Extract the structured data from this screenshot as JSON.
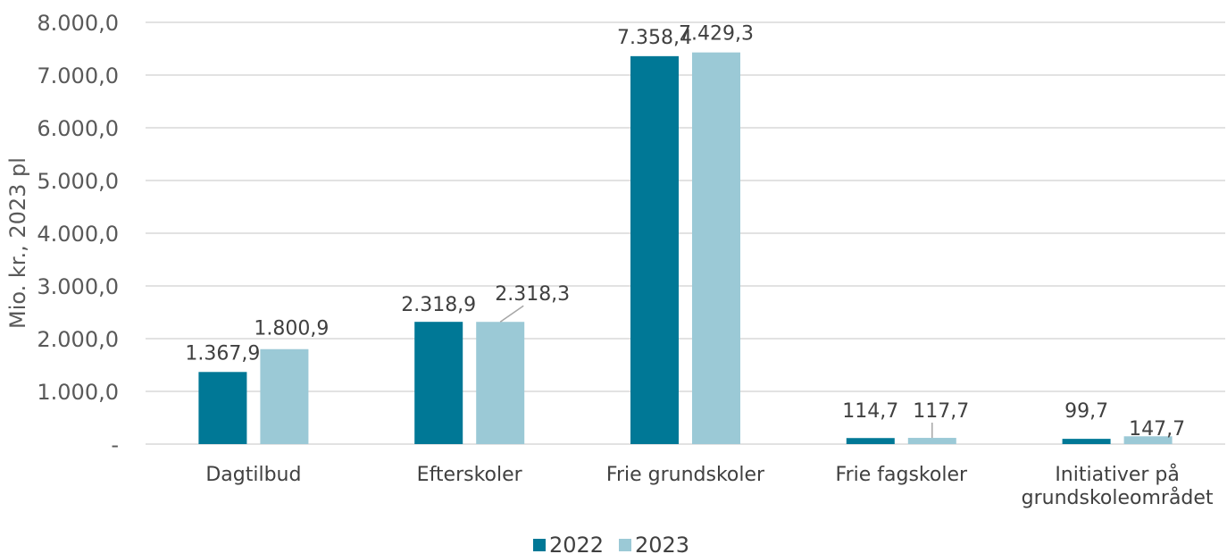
{
  "chart_data": {
    "type": "bar",
    "title": "",
    "ylabel": "Mio. kr., 2023 pl",
    "xlabel": "",
    "categories": [
      [
        "Dagtilbud"
      ],
      [
        "Efterskoler"
      ],
      [
        "Frie grundskoler"
      ],
      [
        "Frie fagskoler"
      ],
      [
        "Initiativer på",
        "grundskoleområdet"
      ]
    ],
    "series": [
      {
        "name": "2022",
        "color": "#007896",
        "values": [
          1367.9,
          2318.9,
          7358.4,
          114.7,
          99.7
        ],
        "labels": [
          "1.367,9",
          "2.318,9",
          "7.358,4",
          "114,7",
          "99,7"
        ]
      },
      {
        "name": "2023",
        "color": "#9BC9D6",
        "values": [
          1800.9,
          2318.3,
          7429.3,
          117.7,
          147.7
        ],
        "labels": [
          "1.800,9",
          "2.318,3",
          "7.429,3",
          "117,7",
          "147,7"
        ]
      }
    ],
    "ylim": [
      0,
      8000
    ],
    "yticks": [
      0,
      1000,
      2000,
      3000,
      4000,
      5000,
      6000,
      7000,
      8000
    ],
    "ytick_labels": [
      "-",
      "1.000,0",
      "2.000,0",
      "3.000,0",
      "4.000,0",
      "5.000,0",
      "6.000,0",
      "7.000,0",
      "8.000,0"
    ],
    "grid": true,
    "legend": "bottom-center"
  }
}
